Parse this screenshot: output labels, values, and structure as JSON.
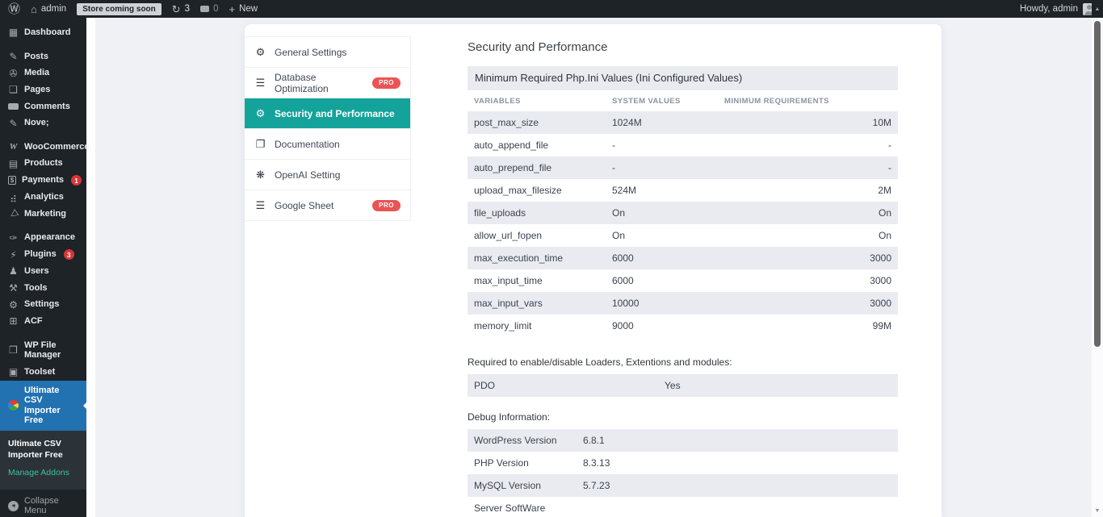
{
  "admin_bar": {
    "site_name": "admin",
    "coming_soon": "Store coming soon",
    "updates_count": "3",
    "comments_count": "0",
    "new_label": "New",
    "howdy": "Howdy, admin"
  },
  "sidebar": {
    "menu_groups": [
      {
        "items": [
          {
            "slug": "dashboard",
            "label": "Dashboard",
            "icon": "dashboard"
          }
        ]
      },
      {
        "items": [
          {
            "slug": "posts",
            "label": "Posts",
            "icon": "pushpin"
          },
          {
            "slug": "media",
            "label": "Media",
            "icon": "media"
          },
          {
            "slug": "pages",
            "label": "Pages",
            "icon": "pages"
          },
          {
            "slug": "comments",
            "label": "Comments",
            "icon": "comment"
          },
          {
            "slug": "nove",
            "label": "Nove;",
            "icon": "pushpin"
          }
        ]
      },
      {
        "items": [
          {
            "slug": "woocommerce",
            "label": "WooCommerce",
            "icon": "woocommerce"
          },
          {
            "slug": "products",
            "label": "Products",
            "icon": "products"
          },
          {
            "slug": "payments",
            "label": "Payments",
            "icon": "payments",
            "badge": "1"
          },
          {
            "slug": "analytics",
            "label": "Analytics",
            "icon": "analytics"
          },
          {
            "slug": "marketing",
            "label": "Marketing",
            "icon": "marketing"
          }
        ]
      },
      {
        "items": [
          {
            "slug": "appearance",
            "label": "Appearance",
            "icon": "appearance"
          },
          {
            "slug": "plugins",
            "label": "Plugins",
            "icon": "plugins",
            "badge": "3"
          },
          {
            "slug": "users",
            "label": "Users",
            "icon": "users"
          },
          {
            "slug": "tools",
            "label": "Tools",
            "icon": "tools"
          },
          {
            "slug": "settings",
            "label": "Settings",
            "icon": "settings"
          },
          {
            "slug": "acf",
            "label": "ACF",
            "icon": "acf"
          }
        ]
      },
      {
        "items": [
          {
            "slug": "wp-file-manager",
            "label": "WP File Manager",
            "icon": "folder"
          },
          {
            "slug": "toolset",
            "label": "Toolset",
            "icon": "toolset"
          }
        ]
      }
    ],
    "active_item": {
      "label": "Ultimate CSV Importer Free",
      "icon": "csv-logo"
    },
    "submenu": [
      {
        "label": "Ultimate CSV Importer Free",
        "current": true
      },
      {
        "label": "Manage Addons",
        "current": false
      }
    ],
    "collapse_label": "Collapse Menu"
  },
  "settings_nav": {
    "pro_label": "PRO",
    "tabs": [
      {
        "label": "General Settings",
        "icon": "gear",
        "active": false,
        "pro": false
      },
      {
        "label": "Database Optimization",
        "icon": "database",
        "active": false,
        "pro": true
      },
      {
        "label": "Security and Performance",
        "icon": "gear",
        "active": true,
        "pro": false
      },
      {
        "label": "Documentation",
        "icon": "document",
        "active": false,
        "pro": false
      },
      {
        "label": "OpenAI Setting",
        "icon": "openai",
        "active": false,
        "pro": false
      },
      {
        "label": "Google Sheet",
        "icon": "database",
        "active": false,
        "pro": true
      }
    ]
  },
  "content": {
    "title": "Security and Performance",
    "section_header": "Minimum Required Php.Ini Values (Ini Configured Values)",
    "php_ini_table": {
      "headers": [
        "VARIABLES",
        "SYSTEM VALUES",
        "MINIMUM REQUIREMENTS"
      ],
      "rows": [
        [
          "post_max_size",
          "1024M",
          "10M"
        ],
        [
          "auto_append_file",
          "-",
          "-"
        ],
        [
          "auto_prepend_file",
          "-",
          "-"
        ],
        [
          "upload_max_filesize",
          "524M",
          "2M"
        ],
        [
          "file_uploads",
          "On",
          "On"
        ],
        [
          "allow_url_fopen",
          "On",
          "On"
        ],
        [
          "max_execution_time",
          "6000",
          "3000"
        ],
        [
          "max_input_time",
          "6000",
          "3000"
        ],
        [
          "max_input_vars",
          "10000",
          "3000"
        ],
        [
          "memory_limit",
          "9000",
          "99M"
        ]
      ]
    },
    "loaders_note": "Required to enable/disable Loaders, Extentions and modules:",
    "loaders_rows": [
      [
        "PDO",
        "Yes"
      ]
    ],
    "debug_title": "Debug Information:",
    "debug_rows": [
      [
        "WordPress Version",
        "6.8.1"
      ],
      [
        "PHP Version",
        "8.3.13"
      ],
      [
        "MySQL Version",
        "5.7.23"
      ],
      [
        "Server SoftWare",
        ""
      ]
    ]
  },
  "icons": {
    "wordpress-logo": "Ⓦ",
    "home": "⌂",
    "update": "↻",
    "comment": "css-bubble",
    "plus": "+",
    "dashboard": "▦",
    "pushpin": "✎",
    "media": "✇",
    "pages": "❏",
    "woocommerce": "W",
    "products": "▤",
    "payments": "css-dollar-box",
    "analytics": "⣴",
    "marketing": "◁",
    "appearance": "✑",
    "plugins": "⚡",
    "users": "♟",
    "tools": "⚒",
    "settings": "⚙",
    "acf": "⊞",
    "folder": "❒",
    "toolset": "▣",
    "csv-logo": "css-multicolor-circle",
    "gear": "⚙",
    "database": "☰",
    "document": "❐",
    "openai": "❋",
    "collapse": "◂",
    "scroll-up": "▲",
    "scroll-down": "▼",
    "avatar": "css-avatar"
  },
  "colors": {
    "admin_dark": "#1d2327",
    "active_blue": "#2271b1",
    "accent_teal": "#14a39a",
    "pro_badge_red": "#ea5455",
    "count_badge_red": "#d63638",
    "row_stripe": "#e9ebf0",
    "page_gray": "#f0f1f5",
    "manage_addons_teal": "#38c0a5"
  }
}
